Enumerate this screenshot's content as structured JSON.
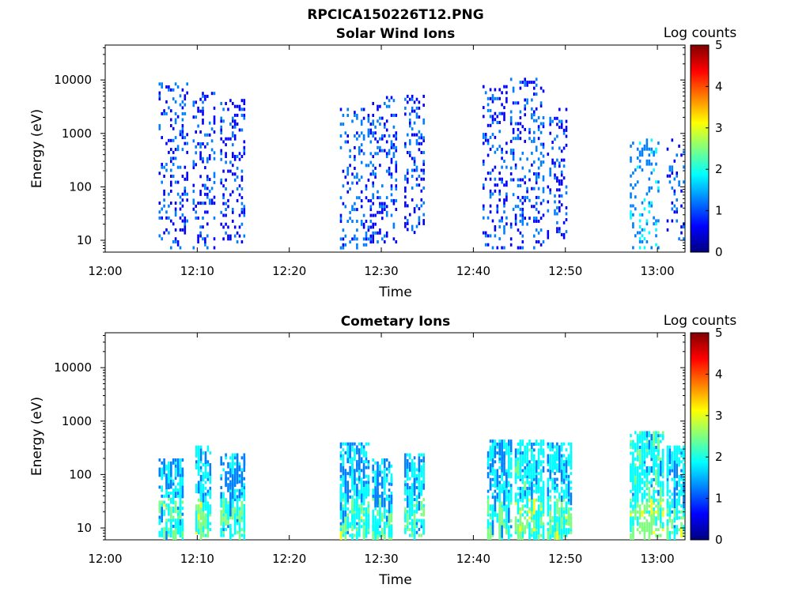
{
  "figure_title": "RPCICA150226T12.PNG",
  "colorscale": [
    "#00007f",
    "#0000ff",
    "#007fff",
    "#00ffff",
    "#7fff7f",
    "#ffff00",
    "#ff7f00",
    "#ff0000",
    "#7f0000"
  ],
  "chart_data": [
    {
      "type": "heatmap",
      "title": "Solar Wind Ions",
      "xlabel": "Time",
      "ylabel": "Energy (eV)",
      "xticks": [
        "12:00",
        "12:10",
        "12:20",
        "12:30",
        "12:40",
        "12:50",
        "13:00"
      ],
      "xlim_min": [
        0,
        63
      ],
      "yscale": "log",
      "ylim": [
        6,
        45000
      ],
      "yticks": [
        10,
        100,
        1000,
        10000
      ],
      "ytick_labels": [
        "10",
        "100",
        "1000",
        "10000"
      ],
      "colorbar": {
        "label": "Log counts",
        "range": [
          0,
          5
        ],
        "ticks": [
          "0",
          "1",
          "2",
          "3",
          "4",
          "5"
        ]
      },
      "bursts": [
        {
          "t0": 5.8,
          "t1": 9.0,
          "emin": 6,
          "emax": 9000,
          "level": 0.9
        },
        {
          "t0": 9.5,
          "t1": 11.8,
          "emin": 6,
          "emax": 6000,
          "level": 0.9
        },
        {
          "t0": 12.5,
          "t1": 15.0,
          "emin": 10,
          "emax": 5000,
          "level": 0.8
        },
        {
          "t0": 25.5,
          "t1": 29.0,
          "emin": 6,
          "emax": 3000,
          "level": 1.0
        },
        {
          "t0": 29.0,
          "t1": 31.5,
          "emin": 10,
          "emax": 5000,
          "level": 0.9
        },
        {
          "t0": 32.5,
          "t1": 34.5,
          "emin": 15,
          "emax": 6000,
          "level": 0.9
        },
        {
          "t0": 41.0,
          "t1": 43.5,
          "emin": 6,
          "emax": 8000,
          "level": 0.9
        },
        {
          "t0": 44.0,
          "t1": 47.5,
          "emin": 6,
          "emax": 11000,
          "level": 1.0
        },
        {
          "t0": 48.0,
          "t1": 50.0,
          "emin": 12,
          "emax": 3000,
          "level": 0.9
        },
        {
          "t0": 57.0,
          "t1": 60.0,
          "emin": 6,
          "emax": 800,
          "level": 1.4
        },
        {
          "t0": 61.0,
          "t1": 63.0,
          "emin": 10,
          "emax": 800,
          "level": 0.9
        }
      ]
    },
    {
      "type": "heatmap",
      "title": "Cometary Ions",
      "xlabel": "Time",
      "ylabel": "Energy (eV)",
      "xticks": [
        "12:00",
        "12:10",
        "12:20",
        "12:30",
        "12:40",
        "12:50",
        "13:00"
      ],
      "xlim_min": [
        0,
        63
      ],
      "yscale": "log",
      "ylim": [
        6,
        45000
      ],
      "yticks": [
        10,
        100,
        1000,
        10000
      ],
      "ytick_labels": [
        "10",
        "100",
        "1000",
        "10000"
      ],
      "colorbar": {
        "label": "Log counts",
        "range": [
          0,
          5
        ],
        "ticks": [
          "0",
          "1",
          "2",
          "3",
          "4",
          "5"
        ]
      },
      "bursts": [
        {
          "t0": 5.8,
          "t1": 8.5,
          "emin": 6,
          "emax": 200,
          "level": 1.6
        },
        {
          "t0": 9.8,
          "t1": 11.5,
          "emin": 6,
          "emax": 350,
          "level": 1.7
        },
        {
          "t0": 12.5,
          "t1": 15.0,
          "emin": 6,
          "emax": 250,
          "level": 1.5
        },
        {
          "t0": 25.5,
          "t1": 28.5,
          "emin": 6,
          "emax": 400,
          "level": 1.6
        },
        {
          "t0": 29.0,
          "t1": 31.0,
          "emin": 6,
          "emax": 200,
          "level": 1.6
        },
        {
          "t0": 32.5,
          "t1": 34.5,
          "emin": 6,
          "emax": 250,
          "level": 1.6
        },
        {
          "t0": 41.5,
          "t1": 44.0,
          "emin": 6,
          "emax": 450,
          "level": 1.6
        },
        {
          "t0": 44.5,
          "t1": 47.5,
          "emin": 6,
          "emax": 450,
          "level": 1.8
        },
        {
          "t0": 48.0,
          "t1": 50.5,
          "emin": 6,
          "emax": 400,
          "level": 1.7
        },
        {
          "t0": 57.0,
          "t1": 60.5,
          "emin": 6,
          "emax": 650,
          "level": 1.9
        },
        {
          "t0": 61.0,
          "t1": 63.0,
          "emin": 6,
          "emax": 350,
          "level": 1.7
        }
      ]
    }
  ]
}
